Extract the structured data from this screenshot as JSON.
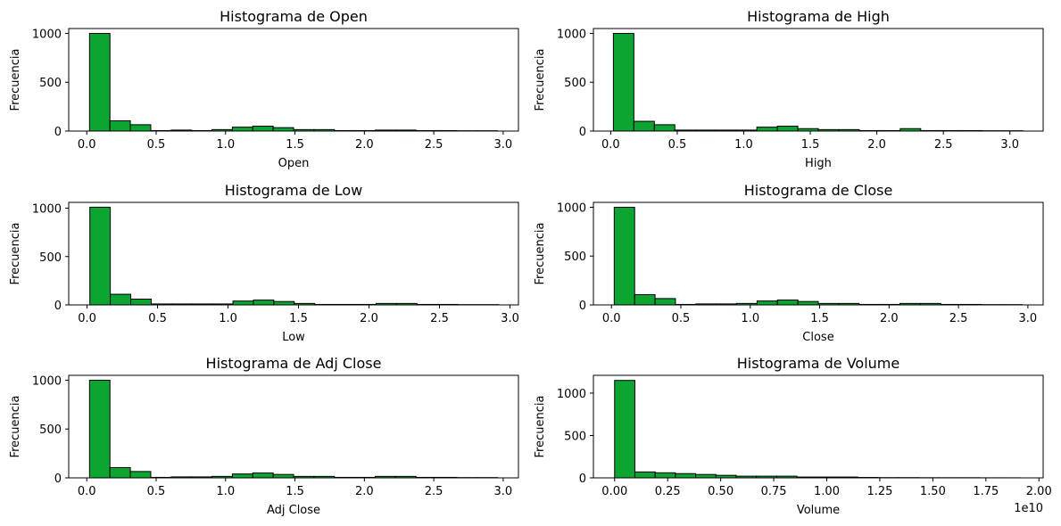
{
  "chart_data": [
    {
      "type": "bar",
      "title": "Histograma de Open",
      "xlabel": "Open",
      "ylabel": "Frecuencia",
      "xlim": [
        -0.13,
        3.11
      ],
      "ylim": [
        0,
        1050
      ],
      "xticks": [
        "0.0",
        "0.5",
        "1.0",
        "1.5",
        "2.0",
        "2.5",
        "3.0"
      ],
      "yticks": [
        "0",
        "500",
        "1000"
      ],
      "bin_start": 0.02,
      "bin_width": 0.147,
      "values": [
        1000,
        105,
        65,
        5,
        10,
        5,
        15,
        40,
        50,
        35,
        15,
        15,
        5,
        5,
        10,
        10,
        5,
        5,
        3,
        3
      ]
    },
    {
      "type": "bar",
      "title": "Histograma de High",
      "xlabel": "High",
      "ylabel": "Frecuencia",
      "xlim": [
        -0.13,
        3.25
      ],
      "ylim": [
        0,
        1050
      ],
      "xticks": [
        "0.0",
        "0.5",
        "1.0",
        "1.5",
        "2.0",
        "2.5",
        "3.0"
      ],
      "yticks": [
        "0",
        "500",
        "1000"
      ],
      "bin_start": 0.02,
      "bin_width": 0.154,
      "values": [
        1000,
        100,
        65,
        10,
        10,
        10,
        10,
        40,
        50,
        25,
        15,
        15,
        5,
        5,
        25,
        5,
        5,
        5,
        3,
        3
      ]
    },
    {
      "type": "bar",
      "title": "Histograma de Low",
      "xlabel": "Low",
      "ylabel": "Frecuencia",
      "xlim": [
        -0.13,
        3.06
      ],
      "ylim": [
        0,
        1060
      ],
      "xticks": [
        "0.0",
        "0.5",
        "1.0",
        "1.5",
        "2.0",
        "2.5",
        "3.0"
      ],
      "yticks": [
        "0",
        "500",
        "1000"
      ],
      "bin_start": 0.02,
      "bin_width": 0.145,
      "values": [
        1010,
        110,
        60,
        10,
        10,
        10,
        10,
        40,
        50,
        35,
        15,
        5,
        5,
        5,
        15,
        15,
        5,
        5,
        3,
        3
      ]
    },
    {
      "type": "bar",
      "title": "Histograma de Close",
      "xlabel": "Close",
      "ylabel": "Frecuencia",
      "xlim": [
        -0.13,
        3.11
      ],
      "ylim": [
        0,
        1050
      ],
      "xticks": [
        "0.0",
        "0.5",
        "1.0",
        "1.5",
        "2.0",
        "2.5",
        "3.0"
      ],
      "yticks": [
        "0",
        "500",
        "1000"
      ],
      "bin_start": 0.02,
      "bin_width": 0.147,
      "values": [
        1000,
        105,
        65,
        5,
        10,
        10,
        15,
        40,
        50,
        35,
        15,
        15,
        5,
        5,
        15,
        15,
        5,
        5,
        3,
        3
      ]
    },
    {
      "type": "bar",
      "title": "Histograma de Adj Close",
      "xlabel": "Adj Close",
      "ylabel": "Frecuencia",
      "xlim": [
        -0.13,
        3.11
      ],
      "ylim": [
        0,
        1050
      ],
      "xticks": [
        "0.0",
        "0.5",
        "1.0",
        "1.5",
        "2.0",
        "2.5",
        "3.0"
      ],
      "yticks": [
        "0",
        "500",
        "1000"
      ],
      "bin_start": 0.02,
      "bin_width": 0.147,
      "values": [
        1000,
        105,
        65,
        5,
        10,
        10,
        15,
        40,
        50,
        35,
        15,
        15,
        5,
        5,
        15,
        15,
        5,
        5,
        3,
        3
      ]
    },
    {
      "type": "bar",
      "title": "Histograma de Volume",
      "xlabel": "Volume",
      "ylabel": "Frecuencia",
      "offset_label": "1e10",
      "xlim": [
        -0.1,
        2.02
      ],
      "ylim": [
        0,
        1210
      ],
      "xticks": [
        "0.00",
        "0.25",
        "0.50",
        "0.75",
        "1.00",
        "1.25",
        "1.50",
        "1.75",
        "2.00"
      ],
      "yticks": [
        "0",
        "500",
        "1000"
      ],
      "bin_start": 0.0,
      "bin_width": 0.0955,
      "values": [
        1150,
        70,
        60,
        50,
        40,
        30,
        20,
        20,
        20,
        10,
        10,
        10,
        5,
        3,
        3,
        2,
        2,
        2,
        1,
        1
      ]
    }
  ]
}
